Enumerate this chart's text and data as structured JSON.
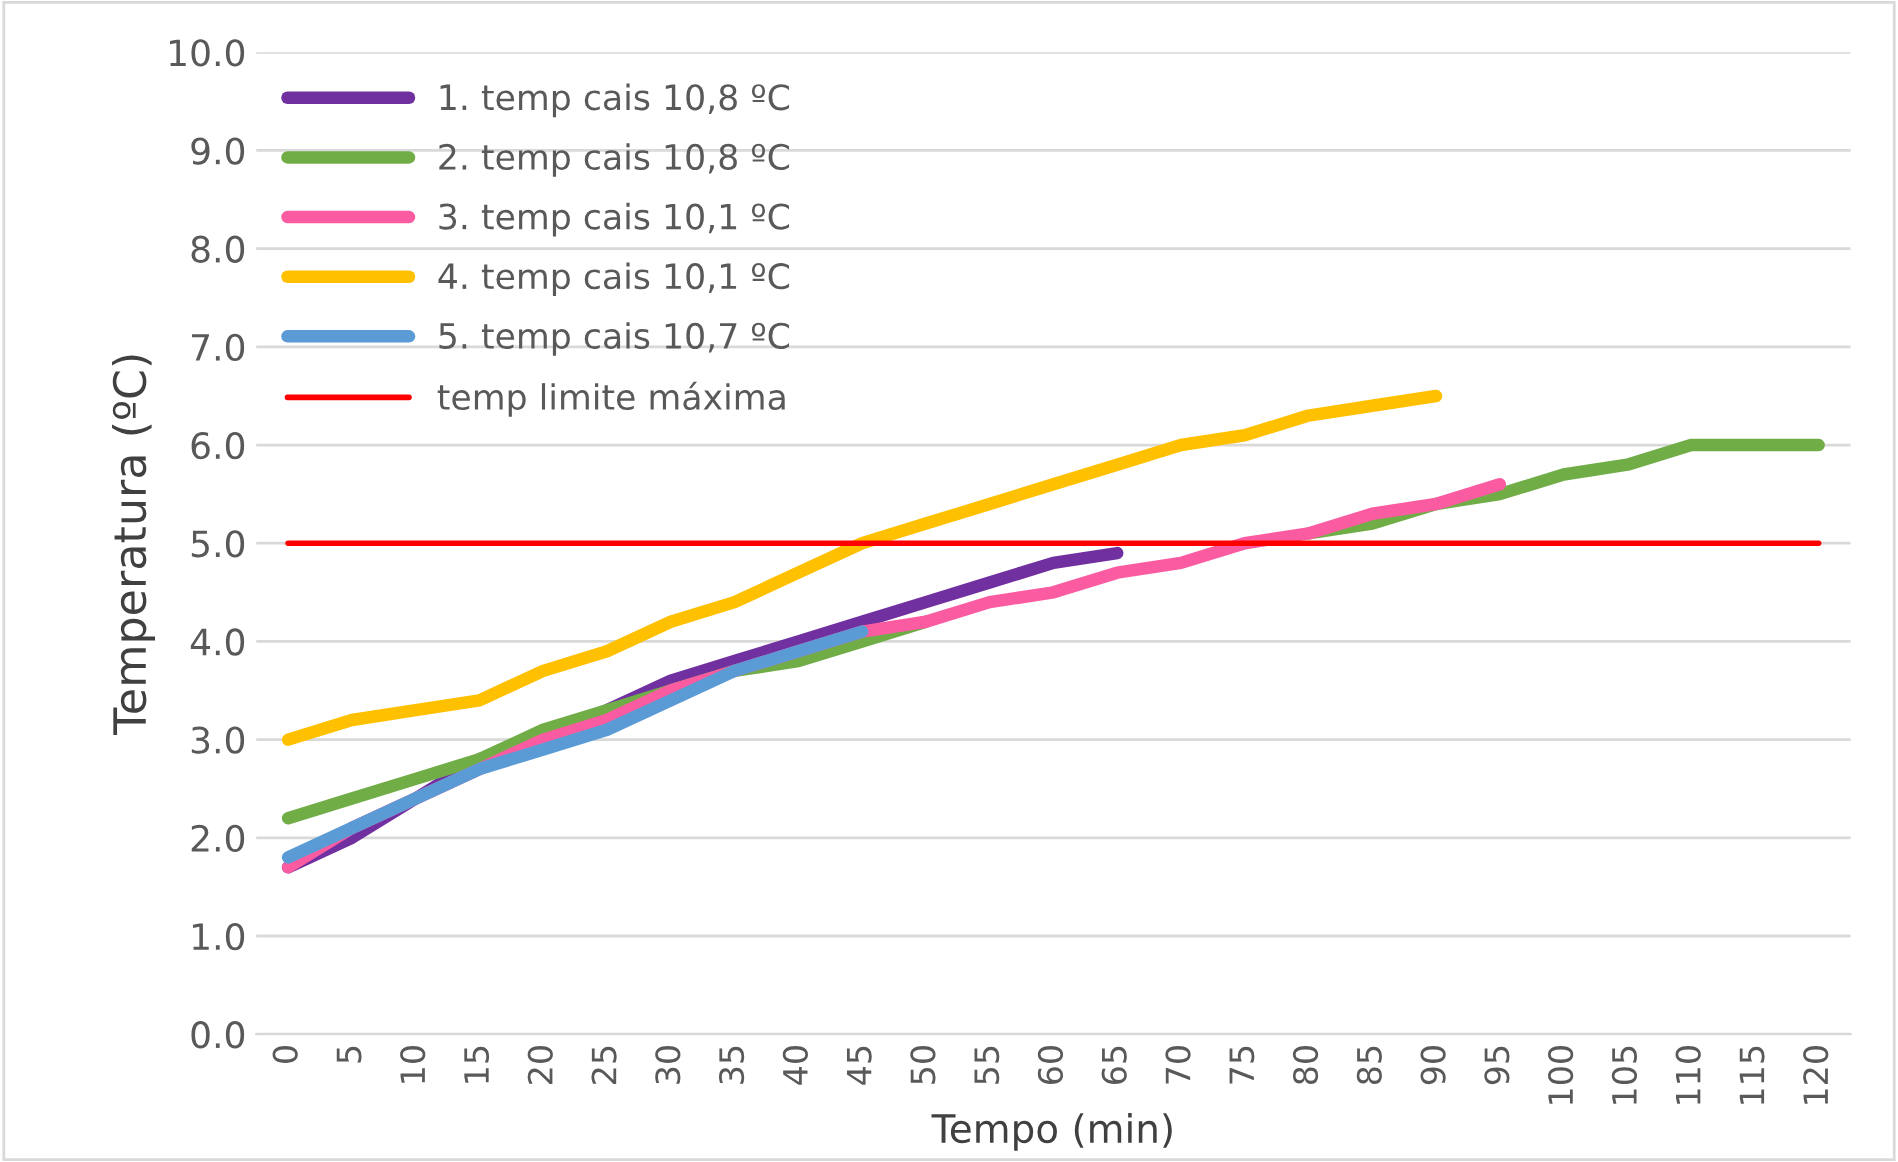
{
  "chart_data": {
    "type": "line",
    "xlabel": "Tempo (min)",
    "ylabel": "Temperatura (ºC)",
    "categories": [
      "0",
      "5",
      "10",
      "15",
      "20",
      "25",
      "30",
      "35",
      "40",
      "45",
      "50",
      "55",
      "60",
      "65",
      "70",
      "75",
      "80",
      "85",
      "90",
      "95",
      "100",
      "105",
      "110",
      "115",
      "120"
    ],
    "series": [
      {
        "name": "1. temp cais 10,8 ºC",
        "color": "#7030a0",
        "values": [
          1.7,
          2.0,
          2.4,
          2.8,
          3.0,
          3.3,
          3.6,
          3.8,
          4.0,
          4.2,
          4.4,
          4.6,
          4.8,
          4.9,
          null,
          null,
          null,
          null,
          null,
          null,
          null,
          null,
          null,
          null,
          null
        ]
      },
      {
        "name": "2. temp cais 10,8 ºC",
        "color": "#70ad47",
        "values": [
          2.2,
          2.4,
          2.6,
          2.8,
          3.1,
          3.3,
          3.5,
          3.7,
          3.8,
          4.0,
          4.2,
          null,
          null,
          null,
          null,
          null,
          5.1,
          5.2,
          5.4,
          5.5,
          5.7,
          5.8,
          6.0,
          6.0,
          6.0
        ]
      },
      {
        "name": "3. temp cais 10,1 ºC",
        "color": "#fb5ba0",
        "values": [
          1.7,
          2.1,
          2.4,
          2.7,
          3.0,
          3.2,
          3.5,
          3.7,
          3.9,
          4.1,
          4.2,
          4.4,
          4.5,
          4.7,
          4.8,
          5.0,
          5.1,
          5.3,
          5.4,
          5.6,
          null,
          null,
          null,
          null,
          null
        ]
      },
      {
        "name": "4. temp cais 10,1 ºC",
        "color": "#ffc000",
        "values": [
          3.0,
          3.2,
          3.3,
          3.4,
          3.7,
          3.9,
          4.2,
          4.4,
          4.7,
          5.0,
          5.2,
          5.4,
          5.6,
          5.8,
          6.0,
          6.1,
          6.3,
          6.4,
          6.5,
          null,
          null,
          null,
          null,
          null,
          null
        ]
      },
      {
        "name": "5. temp cais 10,7 ºC",
        "color": "#5b9bd5",
        "values": [
          1.8,
          2.1,
          2.4,
          2.7,
          2.9,
          3.1,
          3.4,
          3.7,
          3.9,
          4.1,
          null,
          null,
          null,
          null,
          null,
          null,
          null,
          null,
          null,
          null,
          null,
          null,
          null,
          null,
          null
        ]
      },
      {
        "name": "temp limite máxima",
        "color": "#ff0000",
        "values": [
          5.0,
          5.0,
          5.0,
          5.0,
          5.0,
          5.0,
          5.0,
          5.0,
          5.0,
          5.0,
          5.0,
          5.0,
          5.0,
          5.0,
          5.0,
          5.0,
          5.0,
          5.0,
          5.0,
          5.0,
          5.0,
          5.0,
          5.0,
          5.0,
          5.0
        ]
      }
    ],
    "ylim": [
      0,
      10
    ],
    "yticks": [
      {
        "value": 0,
        "label": "0.0"
      },
      {
        "value": 1,
        "label": "1.0"
      },
      {
        "value": 2,
        "label": "2.0"
      },
      {
        "value": 3,
        "label": "3.0"
      },
      {
        "value": 4,
        "label": "4.0"
      },
      {
        "value": 5,
        "label": "5.0"
      },
      {
        "value": 6,
        "label": "6.0"
      },
      {
        "value": 7,
        "label": "7.0"
      },
      {
        "value": 8,
        "label": "8.0"
      },
      {
        "value": 9,
        "label": "9.0"
      },
      {
        "value": 10,
        "label": "10.0"
      }
    ],
    "grid": "y",
    "legend": "top left"
  }
}
